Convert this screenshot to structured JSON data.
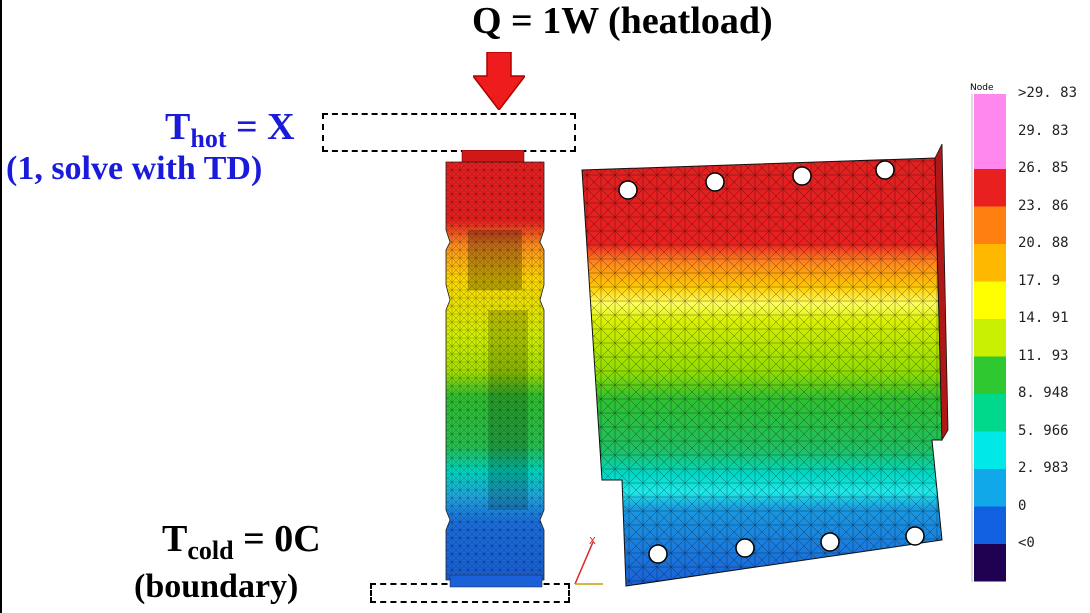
{
  "heatload": {
    "label": "Q = 1W (heatload)"
  },
  "hot": {
    "t": "T",
    "sub": "hot",
    "value": " = X",
    "note": "(1, solve with TD)"
  },
  "cold": {
    "t": "T",
    "sub": "cold",
    "value": " = 0C",
    "note": "(boundary)"
  },
  "legend": {
    "title": "Node",
    "labels": [
      ">29. 83",
      "29. 83",
      "26. 85",
      "23. 86",
      "20. 88",
      "17. 9",
      "14. 91",
      "11. 93",
      "8. 948",
      "5. 966",
      "2. 983",
      "0",
      "<0"
    ],
    "colors": [
      "#ff88ee",
      "#ff88ee",
      "#e82020",
      "#ff7f10",
      "#ffb800",
      "#ffff00",
      "#c8f000",
      "#30c830",
      "#00d88c",
      "#00e8e8",
      "#10a8e8",
      "#1060e0",
      "#200050"
    ]
  },
  "colors": {
    "arrow": "#ee1c1c",
    "hot_text": "#1a1adb",
    "cold_text": "#000000"
  }
}
